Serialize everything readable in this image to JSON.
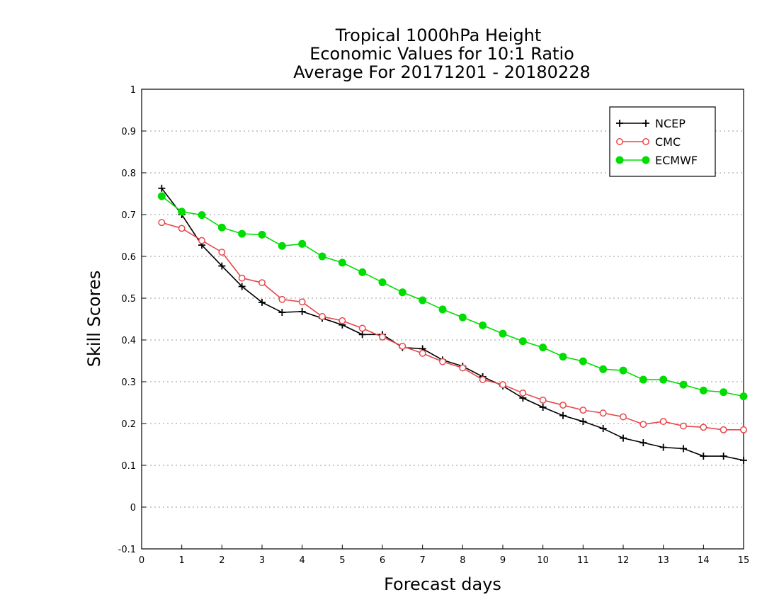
{
  "chart_data": {
    "type": "line",
    "title_lines": [
      "Tropical 1000hPa Height",
      "Economic Values for 10:1 Ratio",
      "Average For 20171201 - 20180228"
    ],
    "xlabel": "Forecast days",
    "ylabel": "Skill Scores",
    "xlim": [
      0,
      15
    ],
    "ylim": [
      -0.1,
      1
    ],
    "xticks": [
      "0",
      "1",
      "2",
      "3",
      "4",
      "5",
      "6",
      "7",
      "8",
      "9",
      "10",
      "11",
      "12",
      "13",
      "14",
      "15"
    ],
    "yticks": [
      "-0.1",
      "0",
      "0.1",
      "0.2",
      "0.3",
      "0.4",
      "0.5",
      "0.6",
      "0.7",
      "0.8",
      "0.9",
      "1"
    ],
    "grid": "horizontal dotted",
    "legend_position": "top-right",
    "x": [
      0.5,
      1,
      1.5,
      2,
      2.5,
      3,
      3.5,
      4,
      4.5,
      5,
      5.5,
      6,
      6.5,
      7,
      7.5,
      8,
      8.5,
      9,
      9.5,
      10,
      10.5,
      11,
      11.5,
      12,
      12.5,
      13,
      13.5,
      14,
      14.5,
      15
    ],
    "series": [
      {
        "name": "NCEP",
        "color": "#000000",
        "marker": "plus",
        "values": [
          0.763,
          0.7,
          0.627,
          0.577,
          0.528,
          0.49,
          0.466,
          0.468,
          0.452,
          0.436,
          0.413,
          0.413,
          0.382,
          0.379,
          0.352,
          0.337,
          0.312,
          0.29,
          0.261,
          0.239,
          0.219,
          0.205,
          0.188,
          0.165,
          0.154,
          0.143,
          0.14,
          0.122,
          0.122,
          0.112
        ]
      },
      {
        "name": "CMC",
        "color": "#e8464a",
        "marker": "open-circle",
        "values": [
          0.681,
          0.667,
          0.638,
          0.61,
          0.548,
          0.537,
          0.497,
          0.491,
          0.456,
          0.446,
          0.428,
          0.407,
          0.385,
          0.368,
          0.348,
          0.333,
          0.305,
          0.293,
          0.273,
          0.256,
          0.244,
          0.232,
          0.225,
          0.216,
          0.198,
          0.205,
          0.194,
          0.191,
          0.185,
          0.185
        ]
      },
      {
        "name": "ECMWF",
        "color": "#00dd00",
        "marker": "filled-circle",
        "values": [
          0.744,
          0.707,
          0.699,
          0.669,
          0.654,
          0.652,
          0.625,
          0.63,
          0.6,
          0.585,
          0.562,
          0.538,
          0.514,
          0.495,
          0.473,
          0.454,
          0.435,
          0.415,
          0.397,
          0.382,
          0.36,
          0.349,
          0.33,
          0.327,
          0.305,
          0.305,
          0.293,
          0.279,
          0.275,
          0.265
        ]
      }
    ]
  }
}
